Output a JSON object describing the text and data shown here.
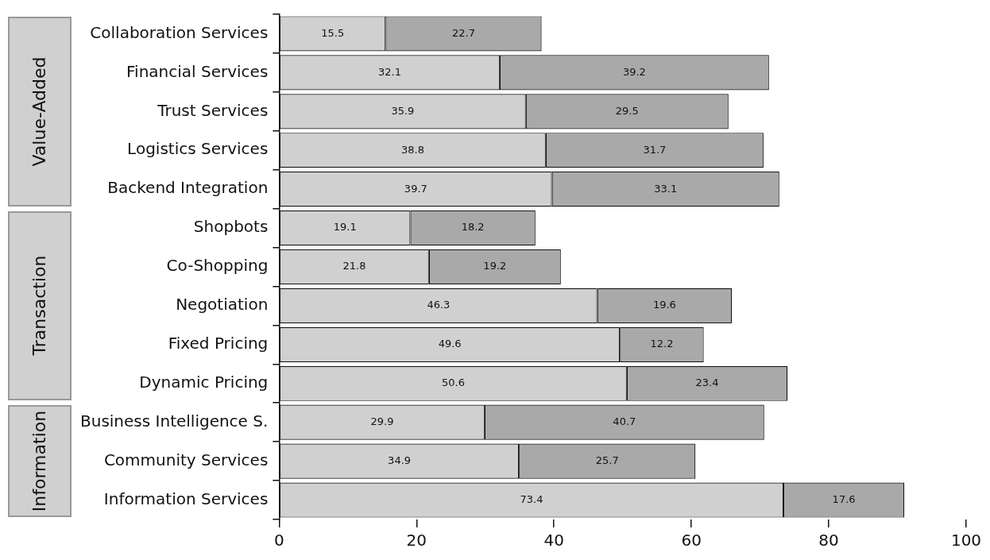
{
  "chart_data": {
    "type": "bar",
    "orientation": "horizontal",
    "stacked": true,
    "categories": [
      "Collaboration Services",
      "Financial Services",
      "Trust Services",
      "Logistics Services",
      "Backend Integration",
      "Shopbots",
      "Co-Shopping",
      "Negotiation",
      "Fixed Pricing",
      "Dynamic Pricing",
      "Business Intelligence S.",
      "Community Services",
      "Information Services"
    ],
    "series": [
      {
        "color": "#d0d0d0",
        "values": [
          15.5,
          32.1,
          35.9,
          38.8,
          39.7,
          19.1,
          21.8,
          46.3,
          49.6,
          50.6,
          29.9,
          34.9,
          73.4
        ]
      },
      {
        "color": "#a9a9a9",
        "values": [
          22.7,
          39.2,
          29.5,
          31.7,
          33.1,
          18.2,
          19.2,
          19.6,
          12.2,
          23.4,
          40.7,
          25.7,
          17.6
        ]
      }
    ],
    "xlim": [
      0,
      100
    ],
    "xticks": [
      0,
      20,
      40,
      60,
      80,
      100
    ],
    "data_labels": true,
    "legend": false,
    "grid": false,
    "annotations": [
      "Value-Added",
      "Transaction",
      "Information"
    ]
  }
}
